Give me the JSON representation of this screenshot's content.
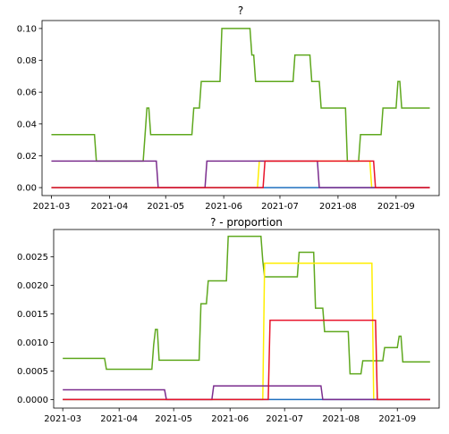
{
  "chart_data": [
    {
      "type": "line",
      "title": "?",
      "xlabel": "",
      "ylabel": "",
      "x_ticks": [
        "2021-03",
        "2021-04",
        "2021-05",
        "2021-06",
        "2021-07",
        "2021-08",
        "2021-09"
      ],
      "y_ticks": [
        "0.00",
        "0.02",
        "0.04",
        "0.06",
        "0.08",
        "0.10"
      ],
      "xlim": [
        "2021-02-24",
        "2021-09-24"
      ],
      "ylim": [
        -0.005,
        0.105
      ],
      "grid": false,
      "series": [
        {
          "color": "#5fa81e",
          "points": [
            [
              "2021-03-01",
              0.0333
            ],
            [
              "2021-03-24",
              0.0333
            ],
            [
              "2021-03-25",
              0.0167
            ],
            [
              "2021-04-19",
              0.0167
            ],
            [
              "2021-04-20",
              0.0333
            ],
            [
              "2021-04-21",
              0.05
            ],
            [
              "2021-04-22",
              0.05
            ],
            [
              "2021-04-23",
              0.0333
            ],
            [
              "2021-05-15",
              0.0333
            ],
            [
              "2021-05-16",
              0.05
            ],
            [
              "2021-05-19",
              0.05
            ],
            [
              "2021-05-20",
              0.0667
            ],
            [
              "2021-05-30",
              0.0667
            ],
            [
              "2021-05-31",
              0.1
            ],
            [
              "2021-06-15",
              0.1
            ],
            [
              "2021-06-16",
              0.0833
            ],
            [
              "2021-06-17",
              0.0833
            ],
            [
              "2021-06-18",
              0.0667
            ],
            [
              "2021-07-08",
              0.0667
            ],
            [
              "2021-07-09",
              0.0833
            ],
            [
              "2021-07-17",
              0.0833
            ],
            [
              "2021-07-18",
              0.0667
            ],
            [
              "2021-07-22",
              0.0667
            ],
            [
              "2021-07-23",
              0.05
            ],
            [
              "2021-08-05",
              0.05
            ],
            [
              "2021-08-06",
              0.0167
            ],
            [
              "2021-08-12",
              0.0167
            ],
            [
              "2021-08-13",
              0.0333
            ],
            [
              "2021-08-24",
              0.0333
            ],
            [
              "2021-08-25",
              0.05
            ],
            [
              "2021-09-01",
              0.05
            ],
            [
              "2021-09-02",
              0.0667
            ],
            [
              "2021-09-03",
              0.0667
            ],
            [
              "2021-09-04",
              0.05
            ],
            [
              "2021-09-19",
              0.05
            ]
          ]
        },
        {
          "color": "#ffee00",
          "points": [
            [
              "2021-03-01",
              0.0
            ],
            [
              "2021-06-19",
              0.0
            ],
            [
              "2021-06-20",
              0.0167
            ],
            [
              "2021-08-18",
              0.0167
            ],
            [
              "2021-08-19",
              0.0
            ],
            [
              "2021-09-19",
              0.0
            ]
          ]
        },
        {
          "color": "#1f6fbf",
          "points": [
            [
              "2021-03-01",
              0.0
            ],
            [
              "2021-09-19",
              0.0
            ]
          ]
        },
        {
          "color": "#7b2d8e",
          "points": [
            [
              "2021-03-01",
              0.0167
            ],
            [
              "2021-04-26",
              0.0167
            ],
            [
              "2021-04-27",
              0.0
            ],
            [
              "2021-05-22",
              0.0
            ],
            [
              "2021-05-23",
              0.0167
            ],
            [
              "2021-07-21",
              0.0167
            ],
            [
              "2021-07-22",
              0.0
            ],
            [
              "2021-09-19",
              0.0
            ]
          ]
        },
        {
          "color": "#e8132a",
          "points": [
            [
              "2021-03-01",
              0.0
            ],
            [
              "2021-06-22",
              0.0
            ],
            [
              "2021-06-23",
              0.0167
            ],
            [
              "2021-08-20",
              0.0167
            ],
            [
              "2021-08-21",
              0.0
            ],
            [
              "2021-09-19",
              0.0
            ]
          ]
        }
      ]
    },
    {
      "type": "line",
      "title": "? - proportion",
      "xlabel": "",
      "ylabel": "",
      "x_ticks": [
        "2021-03",
        "2021-04",
        "2021-05",
        "2021-06",
        "2021-07",
        "2021-08",
        "2021-09"
      ],
      "y_ticks": [
        "0.0000",
        "0.0005",
        "0.0010",
        "0.0015",
        "0.0020",
        "0.0025"
      ],
      "xlim": [
        "2021-02-24",
        "2021-09-24"
      ],
      "ylim": [
        -0.00015,
        0.00298
      ],
      "grid": false,
      "series": [
        {
          "color": "#5fa81e",
          "points": [
            [
              "2021-03-01",
              0.00072
            ],
            [
              "2021-03-24",
              0.00072
            ],
            [
              "2021-03-25",
              0.00053
            ],
            [
              "2021-04-19",
              0.00053
            ],
            [
              "2021-04-20",
              0.00096
            ],
            [
              "2021-04-21",
              0.00123
            ],
            [
              "2021-04-22",
              0.00123
            ],
            [
              "2021-04-23",
              0.00069
            ],
            [
              "2021-05-15",
              0.00069
            ],
            [
              "2021-05-16",
              0.00168
            ],
            [
              "2021-05-19",
              0.00168
            ],
            [
              "2021-05-20",
              0.00208
            ],
            [
              "2021-05-30",
              0.00208
            ],
            [
              "2021-05-31",
              0.00286
            ],
            [
              "2021-06-18",
              0.00286
            ],
            [
              "2021-06-19",
              0.00243
            ],
            [
              "2021-06-20",
              0.00215
            ],
            [
              "2021-07-08",
              0.00215
            ],
            [
              "2021-07-09",
              0.00258
            ],
            [
              "2021-07-17",
              0.00258
            ],
            [
              "2021-07-18",
              0.0016
            ],
            [
              "2021-07-22",
              0.0016
            ],
            [
              "2021-07-23",
              0.00119
            ],
            [
              "2021-08-05",
              0.00119
            ],
            [
              "2021-08-06",
              0.00045
            ],
            [
              "2021-08-12",
              0.00045
            ],
            [
              "2021-08-13",
              0.00068
            ],
            [
              "2021-08-24",
              0.00068
            ],
            [
              "2021-08-25",
              0.00091
            ],
            [
              "2021-09-01",
              0.00091
            ],
            [
              "2021-09-02",
              0.00111
            ],
            [
              "2021-09-03",
              0.00111
            ],
            [
              "2021-09-04",
              0.00066
            ],
            [
              "2021-09-19",
              0.00066
            ]
          ]
        },
        {
          "color": "#ffee00",
          "points": [
            [
              "2021-03-01",
              0.0
            ],
            [
              "2021-06-19",
              0.0
            ],
            [
              "2021-06-20",
              0.00239
            ],
            [
              "2021-08-18",
              0.00239
            ],
            [
              "2021-08-19",
              0.0
            ],
            [
              "2021-09-19",
              0.0
            ]
          ]
        },
        {
          "color": "#1f6fbf",
          "points": [
            [
              "2021-03-01",
              0.0
            ],
            [
              "2021-09-19",
              0.0
            ]
          ]
        },
        {
          "color": "#7b2d8e",
          "points": [
            [
              "2021-03-01",
              0.00017
            ],
            [
              "2021-04-26",
              0.00017
            ],
            [
              "2021-04-27",
              0.0
            ],
            [
              "2021-05-22",
              0.0
            ],
            [
              "2021-05-23",
              0.00024
            ],
            [
              "2021-07-21",
              0.00024
            ],
            [
              "2021-07-22",
              0.0
            ],
            [
              "2021-09-19",
              0.0
            ]
          ]
        },
        {
          "color": "#e8132a",
          "points": [
            [
              "2021-03-01",
              0.0
            ],
            [
              "2021-06-22",
              0.0
            ],
            [
              "2021-06-23",
              0.00139
            ],
            [
              "2021-08-20",
              0.00139
            ],
            [
              "2021-08-21",
              0.0
            ],
            [
              "2021-09-19",
              0.0
            ]
          ]
        }
      ]
    }
  ]
}
